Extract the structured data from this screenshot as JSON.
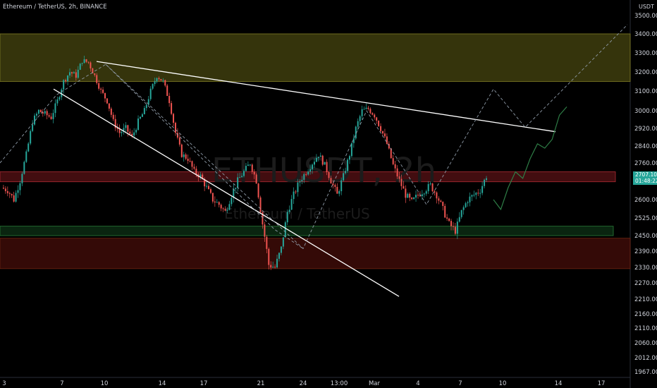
{
  "header": {
    "legend": "Ethereum / TetherUS, 2h, BINANCE",
    "currency": "USDT"
  },
  "watermark": {
    "symbol": "ETHUSDT, 2h",
    "name": "Ethereum / TetherUS"
  },
  "price_tag": {
    "price": "2707.10",
    "countdown": "01:48:22"
  },
  "colors": {
    "up": "#26a69a",
    "down": "#ef5350",
    "zone_resistance": "#3b3a0e",
    "zone_mid": "#4a0f12",
    "zone_support_green": "#0c2a12",
    "zone_support_red": "#3a0c08",
    "trendline": "#ffffff",
    "projection": "#2e7d46"
  },
  "chart_data": {
    "type": "candlestick",
    "y_ticks": [
      "3500.00",
      "3400.00",
      "3300.00",
      "3200.00",
      "3100.00",
      "3000.00",
      "2920.00",
      "2840.00",
      "2760.00",
      "2680.00",
      "2600.00",
      "2525.00",
      "2450.00",
      "2390.00",
      "2330.00",
      "2270.00",
      "2210.00",
      "2160.00",
      "2110.00",
      "2060.00",
      "2012.00",
      "1967.00"
    ],
    "x_ticks": [
      "3",
      "7",
      "10",
      "14",
      "17",
      "21",
      "24",
      "13:00",
      "Mar",
      "4",
      "7",
      "10",
      "14",
      "17"
    ],
    "zones": [
      {
        "name": "resistance-zone",
        "from": 3150,
        "to": 3400
      },
      {
        "name": "mid-zone",
        "from": 2675,
        "to": 2720
      },
      {
        "name": "green-support-zone",
        "from": 2450,
        "to": 2490
      },
      {
        "name": "red-support-zone",
        "from": 2325,
        "to": 2440
      }
    ],
    "candles_close_path": [
      2650,
      2640,
      2600,
      2680,
      2800,
      2950,
      3000,
      2985,
      2970,
      3050,
      3150,
      3200,
      3180,
      3260,
      3250,
      3180,
      3100,
      3050,
      2950,
      2900,
      2920,
      2880,
      2950,
      3000,
      3100,
      3180,
      3150,
      3050,
      2900,
      2800,
      2780,
      2720,
      2700,
      2650,
      2600,
      2580,
      2550,
      2620,
      2680,
      2720,
      2760,
      2680,
      2500,
      2340,
      2330,
      2400,
      2550,
      2620,
      2680,
      2720,
      2760,
      2800,
      2750,
      2680,
      2620,
      2700,
      2800,
      2920,
      3000,
      3010,
      2980,
      2920,
      2850,
      2750,
      2680,
      2620,
      2590,
      2620,
      2640,
      2660,
      2620,
      2560,
      2500,
      2470,
      2550,
      2600,
      2620,
      2640,
      2700
    ],
    "projection_path": [
      2600,
      2560,
      2650,
      2720,
      2690,
      2780,
      2850,
      2830,
      2870,
      2980,
      3020
    ]
  }
}
